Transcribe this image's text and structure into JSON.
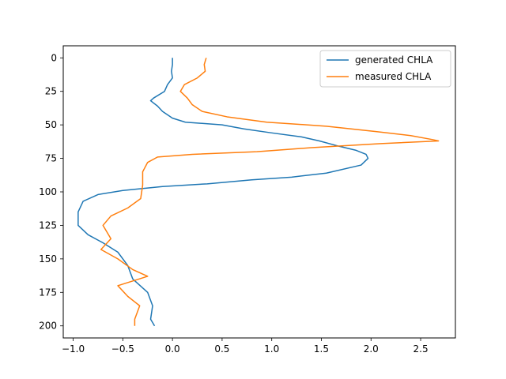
{
  "chart_data": {
    "type": "line",
    "title": "",
    "xlabel": "",
    "ylabel": "",
    "xlim": [
      -1.1,
      2.85
    ],
    "ylim": [
      209,
      -9
    ],
    "y_inverted": true,
    "x_ticks": [
      -1.0,
      -0.5,
      0.0,
      0.5,
      1.0,
      1.5,
      2.0,
      2.5
    ],
    "x_tick_labels": [
      "−1.0",
      "−0.5",
      "0.0",
      "0.5",
      "1.0",
      "1.5",
      "2.0",
      "2.5"
    ],
    "y_ticks": [
      0,
      25,
      50,
      75,
      100,
      125,
      150,
      175,
      200
    ],
    "y_tick_labels": [
      "0",
      "25",
      "50",
      "75",
      "100",
      "125",
      "150",
      "175",
      "200"
    ],
    "grid": false,
    "legend_position": "top-right",
    "series": [
      {
        "name": "generated CHLA",
        "color": "#1f77b4",
        "points": [
          [
            0.0,
            0
          ],
          [
            0.0,
            5
          ],
          [
            -0.01,
            10
          ],
          [
            0.0,
            15
          ],
          [
            -0.05,
            20
          ],
          [
            -0.08,
            25
          ],
          [
            -0.19,
            30
          ],
          [
            -0.22,
            32
          ],
          [
            -0.15,
            36
          ],
          [
            -0.1,
            40
          ],
          [
            0.0,
            45
          ],
          [
            0.13,
            48
          ],
          [
            0.5,
            50
          ],
          [
            0.72,
            53
          ],
          [
            1.0,
            56
          ],
          [
            1.3,
            59
          ],
          [
            1.48,
            62
          ],
          [
            1.68,
            66
          ],
          [
            1.85,
            69
          ],
          [
            1.95,
            72
          ],
          [
            1.97,
            75
          ],
          [
            1.9,
            80
          ],
          [
            1.55,
            86
          ],
          [
            1.2,
            89
          ],
          [
            0.8,
            91
          ],
          [
            0.35,
            94
          ],
          [
            -0.1,
            96
          ],
          [
            -0.5,
            99
          ],
          [
            -0.75,
            102
          ],
          [
            -0.9,
            107
          ],
          [
            -0.95,
            115
          ],
          [
            -0.95,
            125
          ],
          [
            -0.85,
            132
          ],
          [
            -0.7,
            138
          ],
          [
            -0.55,
            145
          ],
          [
            -0.45,
            155
          ],
          [
            -0.4,
            165
          ],
          [
            -0.25,
            175
          ],
          [
            -0.2,
            185
          ],
          [
            -0.22,
            195
          ],
          [
            -0.18,
            200
          ]
        ]
      },
      {
        "name": "measured CHLA",
        "color": "#ff7f0e",
        "points": [
          [
            0.34,
            0
          ],
          [
            0.32,
            5
          ],
          [
            0.33,
            10
          ],
          [
            0.25,
            15
          ],
          [
            0.12,
            20
          ],
          [
            0.08,
            25
          ],
          [
            0.15,
            30
          ],
          [
            0.2,
            35
          ],
          [
            0.3,
            40
          ],
          [
            0.55,
            44
          ],
          [
            0.95,
            48
          ],
          [
            1.55,
            51
          ],
          [
            2.05,
            55
          ],
          [
            2.4,
            58
          ],
          [
            2.62,
            61
          ],
          [
            2.68,
            62
          ],
          [
            2.1,
            64
          ],
          [
            1.4,
            67
          ],
          [
            0.85,
            70
          ],
          [
            0.2,
            72
          ],
          [
            -0.15,
            74
          ],
          [
            -0.25,
            78
          ],
          [
            -0.3,
            85
          ],
          [
            -0.3,
            95
          ],
          [
            -0.32,
            105
          ],
          [
            -0.45,
            112
          ],
          [
            -0.62,
            118
          ],
          [
            -0.7,
            125
          ],
          [
            -0.62,
            135
          ],
          [
            -0.72,
            143
          ],
          [
            -0.55,
            150
          ],
          [
            -0.4,
            158
          ],
          [
            -0.25,
            163
          ],
          [
            -0.55,
            170
          ],
          [
            -0.45,
            178
          ],
          [
            -0.33,
            185
          ],
          [
            -0.38,
            195
          ],
          [
            -0.38,
            200
          ]
        ]
      }
    ]
  }
}
